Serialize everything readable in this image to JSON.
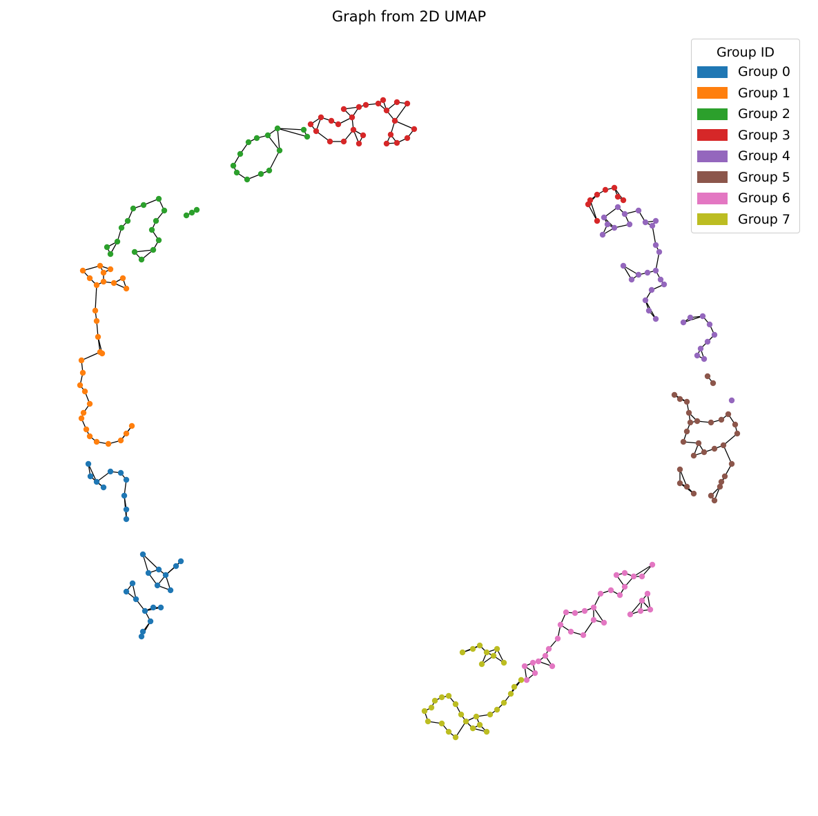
{
  "chart_data": {
    "type": "scatter",
    "title": "Graph from 2D UMAP",
    "xlabel": "",
    "ylabel": "",
    "axes_visible": false,
    "grid": false,
    "edges_color": "#000000",
    "legend": {
      "title": "Group ID",
      "placement": "top-right"
    },
    "series": [
      {
        "name": "Group 0",
        "color": "#1f77b4",
        "points": [
          [
            131,
            690
          ],
          [
            140,
            698
          ],
          [
            128,
            672
          ],
          [
            150,
            706
          ],
          [
            160,
            683
          ],
          [
            175,
            685
          ],
          [
            183,
            695
          ],
          [
            180,
            718
          ],
          [
            183,
            738
          ],
          [
            183,
            752
          ],
          [
            207,
            803
          ],
          [
            215,
            830
          ],
          [
            230,
            825
          ],
          [
            240,
            833
          ],
          [
            255,
            820
          ],
          [
            262,
            813
          ],
          [
            247,
            855
          ],
          [
            228,
            848
          ],
          [
            192,
            845
          ],
          [
            183,
            857
          ],
          [
            197,
            868
          ],
          [
            210,
            885
          ],
          [
            222,
            880
          ],
          [
            233,
            880
          ],
          [
            218,
            900
          ],
          [
            207,
            915
          ],
          [
            205,
            922
          ]
        ]
      },
      {
        "name": "Group 1",
        "color": "#ff7f0e",
        "points": [
          [
            120,
            392
          ],
          [
            130,
            403
          ],
          [
            145,
            385
          ],
          [
            150,
            395
          ],
          [
            160,
            390
          ],
          [
            140,
            413
          ],
          [
            150,
            408
          ],
          [
            165,
            410
          ],
          [
            178,
            403
          ],
          [
            183,
            418
          ],
          [
            138,
            450
          ],
          [
            140,
            465
          ],
          [
            142,
            488
          ],
          [
            145,
            510
          ],
          [
            148,
            512
          ],
          [
            118,
            522
          ],
          [
            120,
            540
          ],
          [
            116,
            558
          ],
          [
            123,
            567
          ],
          [
            130,
            585
          ],
          [
            121,
            598
          ],
          [
            118,
            606
          ],
          [
            125,
            622
          ],
          [
            130,
            632
          ],
          [
            140,
            640
          ],
          [
            157,
            643
          ],
          [
            175,
            638
          ],
          [
            183,
            628
          ],
          [
            191,
            617
          ]
        ]
      },
      {
        "name": "Group 2",
        "color": "#2ca02c",
        "points": [
          [
            155,
            358
          ],
          [
            160,
            368
          ],
          [
            170,
            350
          ],
          [
            176,
            330
          ],
          [
            185,
            320
          ],
          [
            193,
            302
          ],
          [
            208,
            297
          ],
          [
            230,
            288
          ],
          [
            238,
            305
          ],
          [
            226,
            320
          ],
          [
            220,
            333
          ],
          [
            230,
            348
          ],
          [
            222,
            362
          ],
          [
            205,
            376
          ],
          [
            195,
            365
          ],
          [
            270,
            312
          ],
          [
            278,
            308
          ],
          [
            285,
            304
          ],
          [
            338,
            240
          ],
          [
            343,
            250
          ],
          [
            348,
            223
          ],
          [
            360,
            206
          ],
          [
            372,
            200
          ],
          [
            388,
            196
          ],
          [
            402,
            186
          ],
          [
            405,
            218
          ],
          [
            390,
            247
          ],
          [
            378,
            252
          ],
          [
            358,
            260
          ],
          [
            440,
            188
          ],
          [
            445,
            198
          ]
        ]
      },
      {
        "name": "Group 3",
        "color": "#d62728",
        "points": [
          [
            450,
            180
          ],
          [
            458,
            190
          ],
          [
            465,
            170
          ],
          [
            480,
            175
          ],
          [
            490,
            180
          ],
          [
            498,
            158
          ],
          [
            510,
            170
          ],
          [
            520,
            155
          ],
          [
            530,
            152
          ],
          [
            548,
            150
          ],
          [
            555,
            145
          ],
          [
            478,
            205
          ],
          [
            498,
            205
          ],
          [
            512,
            188
          ],
          [
            520,
            208
          ],
          [
            526,
            196
          ],
          [
            560,
            160
          ],
          [
            575,
            148
          ],
          [
            590,
            150
          ],
          [
            572,
            175
          ],
          [
            566,
            195
          ],
          [
            560,
            208
          ],
          [
            575,
            207
          ],
          [
            590,
            200
          ],
          [
            600,
            187
          ],
          [
            855,
            290
          ],
          [
            852,
            296
          ],
          [
            865,
            282
          ],
          [
            877,
            275
          ],
          [
            890,
            272
          ],
          [
            895,
            285
          ],
          [
            903,
            290
          ],
          [
            865,
            320
          ]
        ]
      },
      {
        "name": "Group 4",
        "color": "#9467bd",
        "points": [
          [
            875,
            315
          ],
          [
            880,
            325
          ],
          [
            890,
            330
          ],
          [
            895,
            300
          ],
          [
            905,
            310
          ],
          [
            912,
            325
          ],
          [
            925,
            305
          ],
          [
            935,
            322
          ],
          [
            945,
            327
          ],
          [
            950,
            320
          ],
          [
            873,
            340
          ],
          [
            950,
            355
          ],
          [
            955,
            365
          ],
          [
            903,
            385
          ],
          [
            915,
            405
          ],
          [
            925,
            398
          ],
          [
            938,
            395
          ],
          [
            950,
            392
          ],
          [
            957,
            405
          ],
          [
            962,
            412
          ],
          [
            944,
            420
          ],
          [
            935,
            435
          ],
          [
            940,
            450
          ],
          [
            950,
            462
          ],
          [
            990,
            467
          ],
          [
            1000,
            460
          ],
          [
            1018,
            458
          ],
          [
            1028,
            470
          ],
          [
            1035,
            485
          ],
          [
            1025,
            495
          ],
          [
            1015,
            505
          ],
          [
            1010,
            515
          ],
          [
            1020,
            520
          ],
          [
            1060,
            580
          ]
        ]
      },
      {
        "name": "Group 5",
        "color": "#8c564b",
        "points": [
          [
            977,
            572
          ],
          [
            985,
            578
          ],
          [
            995,
            582
          ],
          [
            1025,
            545
          ],
          [
            1033,
            555
          ],
          [
            998,
            598
          ],
          [
            1000,
            612
          ],
          [
            1010,
            610
          ],
          [
            1030,
            612
          ],
          [
            1045,
            608
          ],
          [
            1055,
            600
          ],
          [
            1065,
            615
          ],
          [
            1068,
            628
          ],
          [
            995,
            625
          ],
          [
            990,
            640
          ],
          [
            1012,
            642
          ],
          [
            1005,
            660
          ],
          [
            1020,
            655
          ],
          [
            1035,
            650
          ],
          [
            1048,
            645
          ],
          [
            1060,
            672
          ],
          [
            1050,
            690
          ],
          [
            1043,
            705
          ],
          [
            985,
            680
          ],
          [
            985,
            700
          ],
          [
            995,
            705
          ],
          [
            1005,
            715
          ],
          [
            1030,
            718
          ],
          [
            1035,
            725
          ],
          [
            1045,
            698
          ]
        ]
      },
      {
        "name": "Group 6",
        "color": "#e377c2",
        "points": [
          [
            893,
            833
          ],
          [
            905,
            830
          ],
          [
            918,
            835
          ],
          [
            930,
            835
          ],
          [
            945,
            818
          ],
          [
            938,
            860
          ],
          [
            930,
            870
          ],
          [
            942,
            883
          ],
          [
            928,
            885
          ],
          [
            913,
            890
          ],
          [
            898,
            862
          ],
          [
            905,
            850
          ],
          [
            885,
            855
          ],
          [
            870,
            860
          ],
          [
            860,
            880
          ],
          [
            847,
            885
          ],
          [
            833,
            888
          ],
          [
            820,
            887
          ],
          [
            812,
            905
          ],
          [
            827,
            915
          ],
          [
            845,
            920
          ],
          [
            860,
            898
          ],
          [
            875,
            902
          ],
          [
            808,
            925
          ],
          [
            795,
            940
          ],
          [
            790,
            950
          ],
          [
            780,
            958
          ],
          [
            772,
            960
          ],
          [
            800,
            965
          ],
          [
            760,
            965
          ],
          [
            775,
            975
          ],
          [
            763,
            985
          ]
        ]
      },
      {
        "name": "Group 7",
        "color": "#bcbd22",
        "points": [
          [
            670,
            945
          ],
          [
            685,
            940
          ],
          [
            695,
            935
          ],
          [
            705,
            945
          ],
          [
            715,
            950
          ],
          [
            698,
            962
          ],
          [
            720,
            940
          ],
          [
            730,
            960
          ],
          [
            615,
            1030
          ],
          [
            620,
            1045
          ],
          [
            625,
            1025
          ],
          [
            630,
            1015
          ],
          [
            640,
            1010
          ],
          [
            650,
            1008
          ],
          [
            660,
            1020
          ],
          [
            668,
            1035
          ],
          [
            675,
            1045
          ],
          [
            685,
            1055
          ],
          [
            695,
            1050
          ],
          [
            705,
            1060
          ],
          [
            690,
            1038
          ],
          [
            710,
            1035
          ],
          [
            720,
            1028
          ],
          [
            730,
            1018
          ],
          [
            740,
            1005
          ],
          [
            745,
            995
          ],
          [
            755,
            985
          ],
          [
            650,
            1060
          ],
          [
            660,
            1068
          ],
          [
            640,
            1048
          ]
        ]
      }
    ]
  }
}
